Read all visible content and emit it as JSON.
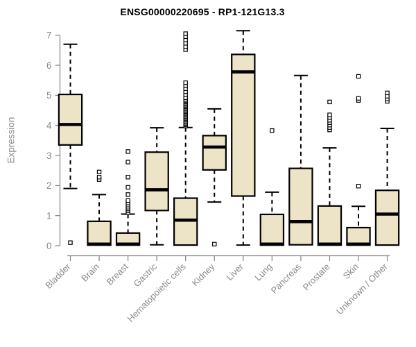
{
  "page": {
    "background": "#ffffff"
  },
  "chart_data": {
    "type": "boxplot",
    "title": "ENSG00000220695 - RP1-121G13.3",
    "ylabel": "Expression",
    "xlabel": "",
    "ylim": [
      0,
      7
    ],
    "yticks": [
      0,
      1,
      2,
      3,
      4,
      5,
      6,
      7
    ],
    "grid": false,
    "legend": "none",
    "colors": {
      "box_fill": "#EDE4C8",
      "box_line": "#000000",
      "median_line": "#000000",
      "whisker": "#000000",
      "outlier_stroke": "#000000",
      "outlier_fill": "#ffffff",
      "axis": "#8A8A8A",
      "tick_text": "#8A8A8A",
      "title_text": "#000000"
    },
    "categories": [
      "Bladder",
      "Brain",
      "Breast",
      "Gastric",
      "Hematopoietic cells",
      "Kidney",
      "Liver",
      "Lung",
      "Pancreas",
      "Prostate",
      "Skin",
      "Unknown / Other"
    ],
    "series": [
      {
        "name": "Bladder",
        "whisker_low": 1.9,
        "q1": 3.35,
        "median": 4.03,
        "q3": 5.03,
        "whisker_high": 6.7,
        "outliers": [
          0.1
        ]
      },
      {
        "name": "Brain",
        "whisker_low": 0.02,
        "q1": 0.02,
        "median": 0.05,
        "q3": 0.81,
        "whisker_high": 1.7,
        "outliers": [
          2.2,
          2.28,
          2.45
        ]
      },
      {
        "name": "Breast",
        "whisker_low": 0.02,
        "q1": 0.02,
        "median": 0.05,
        "q3": 0.42,
        "whisker_high": 1.05,
        "outliers": [
          1.1,
          1.16,
          1.22,
          1.28,
          1.35,
          1.42,
          1.5,
          1.7,
          1.94,
          2.28,
          2.78,
          3.13
        ]
      },
      {
        "name": "Gastric",
        "whisker_low": 0.03,
        "q1": 1.17,
        "median": 1.86,
        "q3": 3.11,
        "whisker_high": 3.92,
        "outliers": []
      },
      {
        "name": "Hematopoietic cells",
        "whisker_low": 0.02,
        "q1": 0.02,
        "median": 0.85,
        "q3": 1.58,
        "whisker_high": 3.93,
        "outliers": [
          3.98,
          4.02,
          4.06,
          4.1,
          4.14,
          4.18,
          4.22,
          4.26,
          4.3,
          4.34,
          4.38,
          4.42,
          4.46,
          4.5,
          4.54,
          4.58,
          4.62,
          4.66,
          4.7,
          4.74,
          4.78,
          4.82,
          4.86,
          4.92,
          5.02,
          5.12,
          5.22,
          5.32,
          5.42,
          6.52,
          6.62,
          6.73,
          6.84,
          6.95,
          7.05
        ]
      },
      {
        "name": "Kidney",
        "whisker_low": 1.45,
        "q1": 2.52,
        "median": 3.28,
        "q3": 3.66,
        "whisker_high": 4.55,
        "outliers": [
          0.05
        ]
      },
      {
        "name": "Liver",
        "whisker_low": 0.02,
        "q1": 1.65,
        "median": 5.78,
        "q3": 6.36,
        "whisker_high": 7.15,
        "outliers": []
      },
      {
        "name": "Lung",
        "whisker_low": 0.02,
        "q1": 0.02,
        "median": 0.05,
        "q3": 1.04,
        "whisker_high": 1.78,
        "outliers": [
          3.83
        ]
      },
      {
        "name": "Pancreas",
        "whisker_low": 0.02,
        "q1": 0.03,
        "median": 0.8,
        "q3": 2.57,
        "whisker_high": 5.66,
        "outliers": []
      },
      {
        "name": "Prostate",
        "whisker_low": 0.02,
        "q1": 0.02,
        "median": 0.05,
        "q3": 1.32,
        "whisker_high": 3.25,
        "outliers": [
          3.85,
          3.93,
          4.01,
          4.09,
          4.17,
          4.26,
          4.35,
          4.78
        ]
      },
      {
        "name": "Skin",
        "whisker_low": 0.02,
        "q1": 0.02,
        "median": 0.05,
        "q3": 0.6,
        "whisker_high": 1.31,
        "outliers": [
          1.98,
          4.83,
          4.9,
          5.63
        ]
      },
      {
        "name": "Unknown / Other",
        "whisker_low": 0.02,
        "q1": 0.02,
        "median": 1.05,
        "q3": 1.84,
        "whisker_high": 3.9,
        "outliers": [
          4.8,
          4.88,
          4.97,
          5.08
        ]
      }
    ]
  }
}
